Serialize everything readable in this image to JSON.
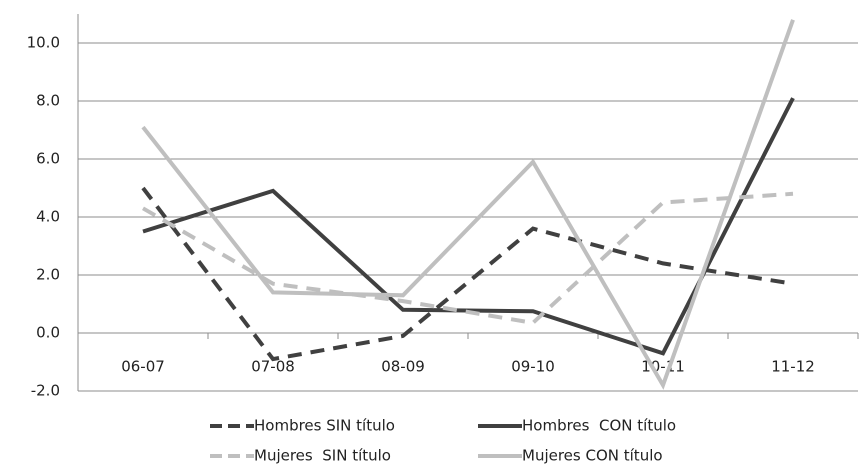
{
  "chart_data": {
    "type": "line",
    "categories": [
      "06-07",
      "07-08",
      "08-09",
      "09-10",
      "10-11",
      "11-12"
    ],
    "series": [
      {
        "name": "Hombres SIN título",
        "color": "#404040",
        "dash": "dashed",
        "values": [
          5.0,
          -0.9,
          -0.1,
          3.6,
          2.4,
          1.7
        ]
      },
      {
        "name": "Hombres  CON título",
        "color": "#404040",
        "dash": "solid",
        "values": [
          3.5,
          4.9,
          0.8,
          0.75,
          -0.7,
          8.1
        ]
      },
      {
        "name": "Mujeres  SIN título",
        "color": "#bfbfbf",
        "dash": "dashed",
        "values": [
          4.3,
          1.7,
          1.1,
          0.35,
          4.5,
          4.8
        ]
      },
      {
        "name": "Mujeres CON título",
        "color": "#bfbfbf",
        "dash": "solid",
        "values": [
          7.1,
          1.4,
          1.3,
          5.9,
          -1.8,
          10.8
        ]
      }
    ],
    "ylim": [
      -2,
      11
    ],
    "yticks": [
      {
        "value": -2,
        "label": "-2.0"
      },
      {
        "value": 0,
        "label": "0.0"
      },
      {
        "value": 2,
        "label": "2.0"
      },
      {
        "value": 4,
        "label": "4.0"
      },
      {
        "value": 6,
        "label": "6.0"
      },
      {
        "value": 8,
        "label": "8.0"
      },
      {
        "value": 10,
        "label": "10.0"
      }
    ],
    "grid": true,
    "legend": "bottom"
  }
}
